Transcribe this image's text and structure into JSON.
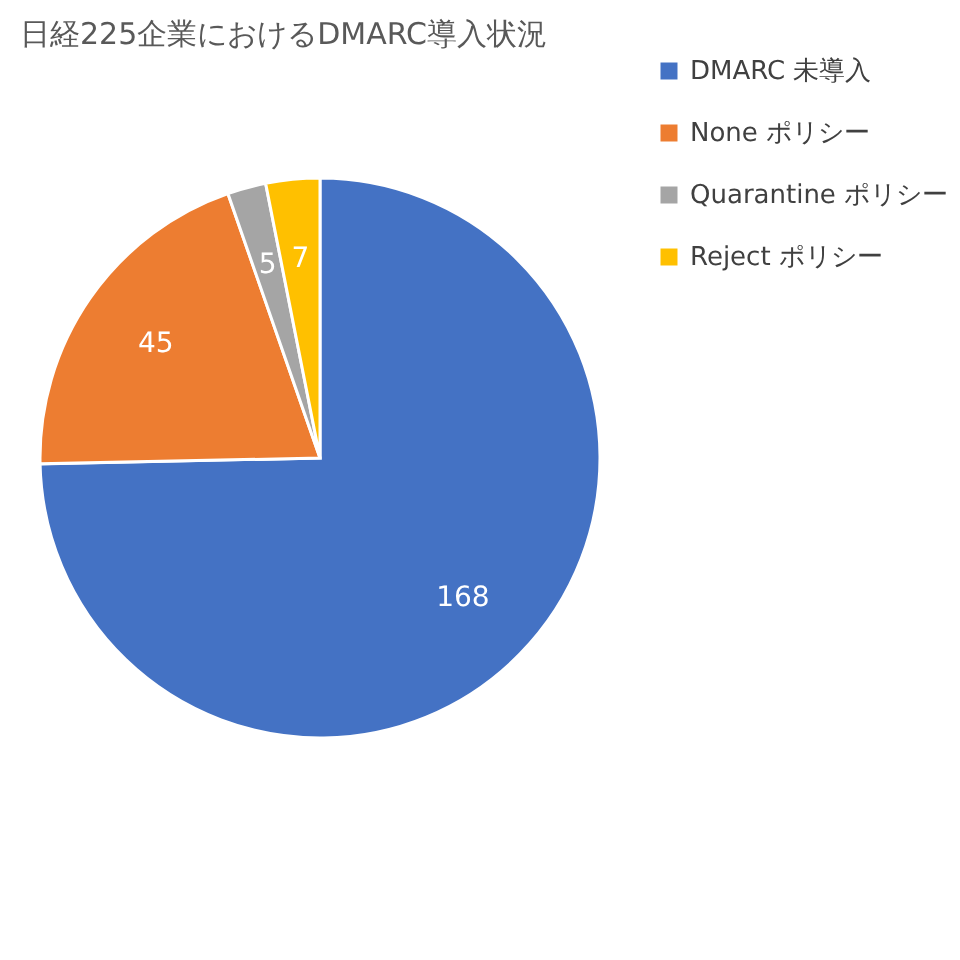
{
  "chart_data": {
    "type": "pie",
    "title": "日経225企業におけるDMARC導入状況",
    "categories": [
      "DMARC 未導入",
      "None ポリシー",
      "Quarantine ポリシー",
      "Reject ポリシー"
    ],
    "values": [
      168,
      45,
      5,
      7
    ],
    "colors": [
      "#4472c4",
      "#ed7d31",
      "#a5a5a5",
      "#ffc000"
    ],
    "data_labels": true,
    "legend": "right"
  }
}
